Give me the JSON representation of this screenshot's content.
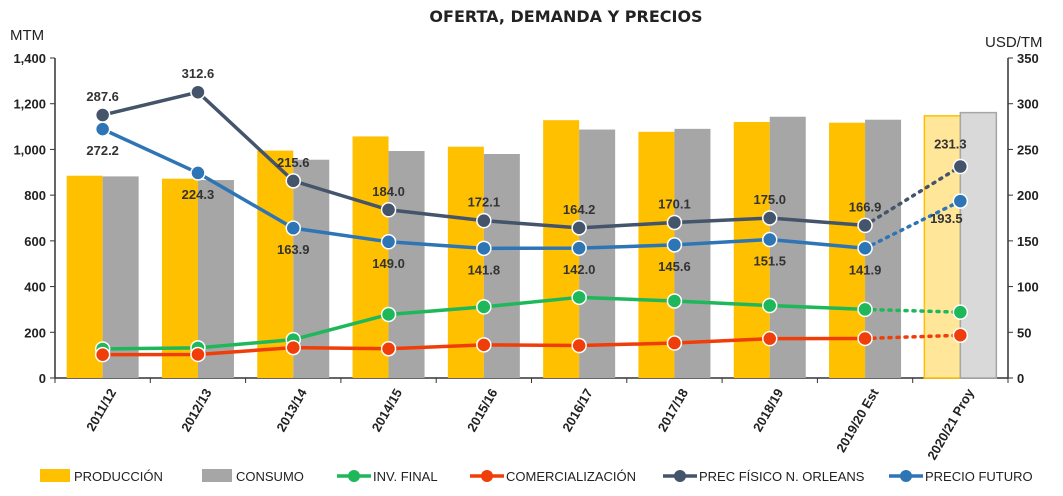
{
  "chart_data": {
    "type": "bar",
    "title": "OFERTA, DEMANDA Y PRECIOS",
    "y_left_unit": "MTM",
    "y_right_unit": "USD/TM",
    "ylim_left": [
      0,
      1400
    ],
    "ylim_right": [
      0,
      350
    ],
    "y_left_ticks": [
      "0",
      "200",
      "400",
      "600",
      "800",
      "1,000",
      "1,200",
      "1,400"
    ],
    "y_right_ticks": [
      "0",
      "50",
      "100",
      "150",
      "200",
      "250",
      "300",
      "350"
    ],
    "categories": [
      "2011/12",
      "2012/13",
      "2013/14",
      "2014/15",
      "2015/16",
      "2016/17",
      "2017/18",
      "2018/19",
      "2019/20 Est",
      "2020/21 Proy"
    ],
    "series": [
      {
        "name": "PRODUCCIÓN",
        "type": "bar",
        "axis": "left",
        "color": "#FFC000",
        "projected_color": "#FFE699",
        "values": [
          885,
          872,
          995,
          1057,
          1012,
          1128,
          1077,
          1120,
          1117,
          1147
        ]
      },
      {
        "name": "CONSUMO",
        "type": "bar",
        "axis": "left",
        "color": "#A6A6A6",
        "projected_color": "#D9D9D9",
        "values": [
          882,
          866,
          955,
          993,
          980,
          1087,
          1090,
          1143,
          1130,
          1161
        ]
      },
      {
        "name": "INV. FINAL",
        "type": "line",
        "axis": "left",
        "color": "#1EB85A",
        "values": [
          127,
          132,
          168,
          278,
          311,
          353,
          337,
          317,
          300,
          288
        ]
      },
      {
        "name": "COMERCIALIZACIÓN",
        "type": "line",
        "axis": "left",
        "color": "#F03E0A",
        "values": [
          102,
          103,
          133,
          128,
          145,
          142,
          153,
          172,
          173,
          187
        ]
      },
      {
        "name": "PREC FÍSICO N. ORLEANS",
        "type": "line",
        "axis": "right",
        "color": "#44546A",
        "values": [
          287.6,
          312.6,
          215.6,
          184.0,
          172.1,
          164.2,
          170.1,
          175.0,
          166.9,
          231.3
        ],
        "labels": [
          "287.6",
          "312.6",
          "215.6",
          "184.0",
          "172.1",
          "164.2",
          "170.1",
          "175.0",
          "166.9",
          "231.3"
        ]
      },
      {
        "name": "PRECIO FUTURO",
        "type": "line",
        "axis": "right",
        "color": "#2E75B6",
        "values": [
          272.2,
          224.3,
          163.9,
          149.0,
          141.8,
          142.0,
          145.6,
          151.5,
          141.9,
          193.5
        ],
        "labels": [
          "272.2",
          "224.3",
          "163.9",
          "149.0",
          "141.8",
          "142.0",
          "145.6",
          "151.5",
          "141.9",
          "193.5"
        ]
      }
    ],
    "projected_index": 9,
    "legend": [
      "PRODUCCIÓN",
      "CONSUMO",
      "INV. FINAL",
      "COMERCIALIZACIÓN",
      "PREC FÍSICO N. ORLEANS",
      "PRECIO FUTURO"
    ],
    "legend_position": "bottom",
    "grid": false
  }
}
